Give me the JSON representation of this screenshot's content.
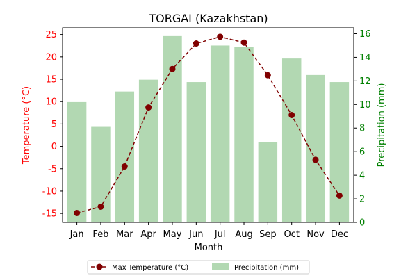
{
  "chart_data": {
    "type": "bar+line",
    "title": "TORGAI (Kazakhstan)",
    "xlabel": "Month",
    "categories": [
      "Jan",
      "Feb",
      "Mar",
      "Apr",
      "May",
      "Jun",
      "Jul",
      "Aug",
      "Sep",
      "Oct",
      "Nov",
      "Dec"
    ],
    "y_left": {
      "label": "Temperature (°C)",
      "ylim": [
        -17,
        26.5
      ],
      "ticks": [
        -15,
        -10,
        -5,
        0,
        5,
        10,
        15,
        20,
        25
      ],
      "color": "#ff0000"
    },
    "y_right": {
      "label": "Precipitation (mm)",
      "ylim": [
        0,
        16.5
      ],
      "ticks": [
        0,
        2,
        4,
        6,
        8,
        10,
        12,
        14,
        16
      ],
      "color": "#008000"
    },
    "series": [
      {
        "name": "Max Temperature (°C)",
        "kind": "line",
        "axis": "left",
        "color": "#800000",
        "style": "dashed",
        "marker": "circle",
        "values": [
          -14.9,
          -13.5,
          -4.5,
          8.7,
          17.3,
          23.0,
          24.5,
          23.2,
          15.9,
          7.0,
          -3.0,
          -11.0
        ]
      },
      {
        "name": "Precipitation (mm)",
        "kind": "bar",
        "axis": "right",
        "color": "#b2d8b2",
        "values": [
          10.2,
          8.1,
          11.1,
          12.1,
          15.8,
          11.9,
          15.0,
          14.9,
          6.8,
          13.9,
          12.5,
          11.9
        ]
      }
    ],
    "grid": false,
    "legend_placement": "bottom-center"
  }
}
